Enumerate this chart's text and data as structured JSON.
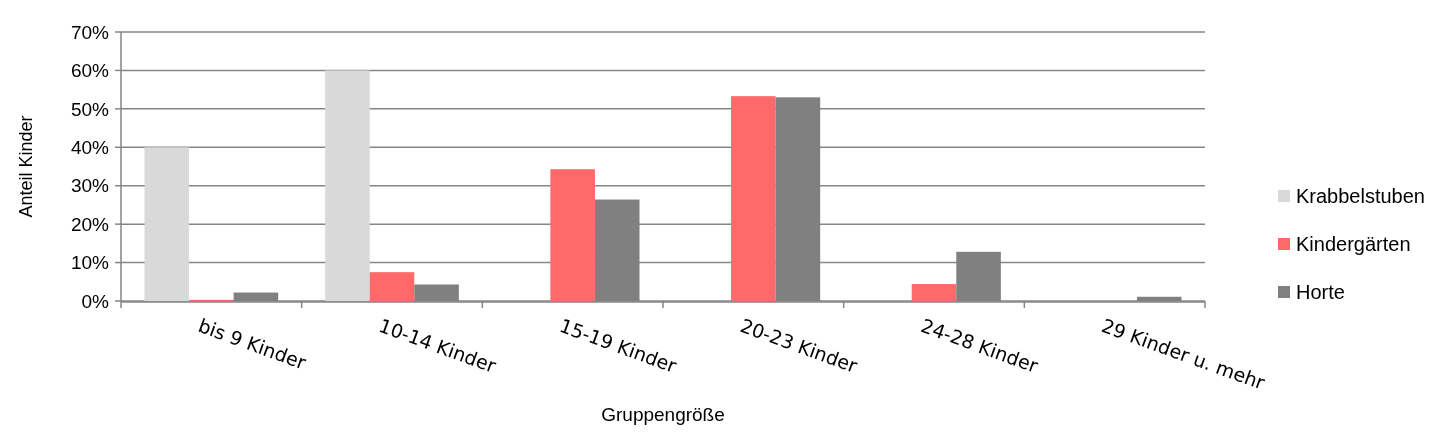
{
  "chart_data": {
    "type": "bar",
    "xlabel": "Gruppengröße",
    "ylabel": "Anteil Kinder",
    "categories": [
      "bis 9 Kinder",
      "10-14 Kinder",
      "15-19 Kinder",
      "20-23 Kinder",
      "24-28 Kinder",
      "29 Kinder u. mehr"
    ],
    "series": [
      {
        "name": "Krabbelstuben",
        "color": "#d9d9d9",
        "values": [
          40,
          60,
          0,
          0,
          0,
          0
        ]
      },
      {
        "name": "Kindergärten",
        "color": "#ff6969",
        "values": [
          0.3,
          7.5,
          34.3,
          53.3,
          4.4,
          0
        ]
      },
      {
        "name": "Horte",
        "color": "#808080",
        "values": [
          2.2,
          4.3,
          26.4,
          53,
          12.8,
          1.1
        ]
      }
    ],
    "ylim": [
      0,
      70
    ],
    "yticks": [
      {
        "value": 0,
        "label": "0%"
      },
      {
        "value": 10,
        "label": "10%"
      },
      {
        "value": 20,
        "label": "20%"
      },
      {
        "value": 30,
        "label": "30%"
      },
      {
        "value": 40,
        "label": "40%"
      },
      {
        "value": 50,
        "label": "50%"
      },
      {
        "value": 60,
        "label": "60%"
      },
      {
        "value": 70,
        "label": "70%"
      }
    ],
    "grid": "y",
    "legend": "right"
  }
}
